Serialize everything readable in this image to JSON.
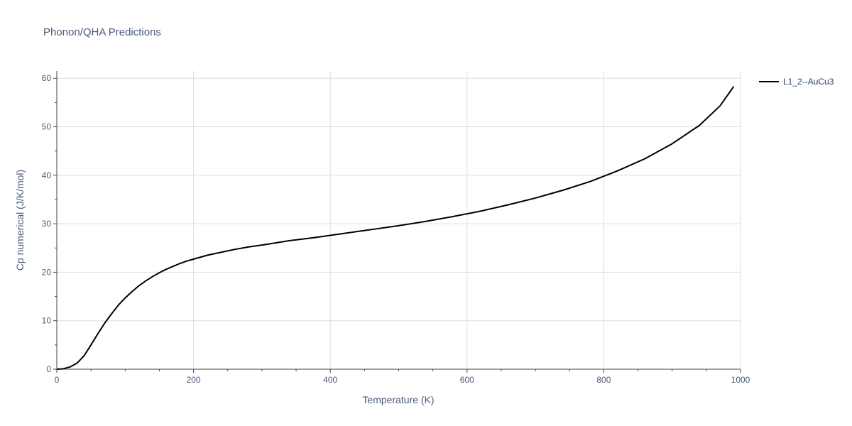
{
  "chart_data": {
    "type": "line",
    "title": "Phonon/QHA Predictions",
    "xlabel": "Temperature (K)",
    "ylabel": "Cp numerical (J/K/mol)",
    "xlim": [
      0,
      1000
    ],
    "ylim": [
      0,
      61.5
    ],
    "x_ticks": [
      0,
      200,
      400,
      600,
      800,
      1000
    ],
    "y_ticks": [
      0,
      10,
      20,
      30,
      40,
      50,
      60
    ],
    "x_tick_labels": [
      "0",
      "200",
      "400",
      "600",
      "800",
      "1000"
    ],
    "y_tick_labels": [
      "0",
      "10",
      "20",
      "30",
      "40",
      "50",
      "60"
    ],
    "grid": true,
    "legend_position": "top-right",
    "series": [
      {
        "name": "L1_2--AuCu3",
        "color": "#000000",
        "x": [
          0,
          10,
          20,
          30,
          40,
          50,
          60,
          70,
          80,
          90,
          100,
          110,
          120,
          130,
          140,
          150,
          160,
          170,
          180,
          190,
          200,
          220,
          240,
          260,
          280,
          300,
          340,
          380,
          420,
          460,
          500,
          540,
          580,
          620,
          660,
          700,
          740,
          780,
          820,
          860,
          900,
          940,
          970,
          990
        ],
        "values": [
          0,
          0.1,
          0.5,
          1.3,
          2.8,
          5.0,
          7.3,
          9.5,
          11.4,
          13.2,
          14.7,
          16.0,
          17.2,
          18.2,
          19.1,
          19.9,
          20.6,
          21.2,
          21.8,
          22.3,
          22.7,
          23.5,
          24.1,
          24.7,
          25.2,
          25.6,
          26.5,
          27.2,
          28.0,
          28.8,
          29.6,
          30.5,
          31.5,
          32.6,
          33.9,
          35.3,
          36.9,
          38.7,
          40.9,
          43.4,
          46.5,
          50.3,
          54.3,
          58.3
        ]
      }
    ]
  }
}
